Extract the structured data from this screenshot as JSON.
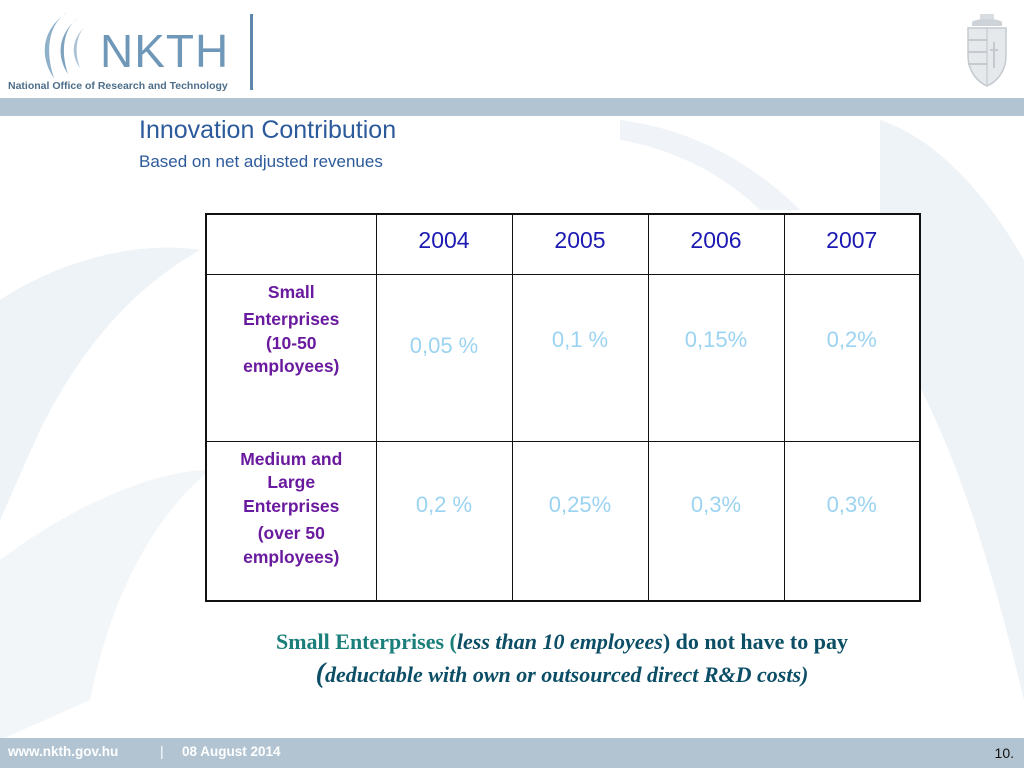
{
  "header": {
    "logo_text": "NKTH",
    "logo_subtitle": "National Office of Research and Technology"
  },
  "slide": {
    "title": "Innovation Contribution",
    "subtitle": "Based on net adjusted revenues"
  },
  "table": {
    "columns": [
      "",
      "2004",
      "2005",
      "2006",
      "2007"
    ],
    "rows": [
      {
        "label_lines": [
          "Small",
          "Enterprises",
          "(10-50",
          "employees)"
        ],
        "values": [
          "0,05 %",
          "0,1 %",
          "0,15%",
          "0,2%"
        ]
      },
      {
        "label_lines": [
          "Medium and",
          "Large",
          "Enterprises",
          "(over 50",
          "employees)"
        ],
        "values": [
          "0,2 %",
          "0,25%",
          "0,3%",
          "0,3%"
        ]
      }
    ]
  },
  "note": {
    "part1": "Small Enterprises (",
    "part2_italic": "less than 10 employees",
    "part3": ") do not have to pay",
    "part4_paren": "(",
    "part5_italic": "deductable with own or outsourced direct R&D costs)"
  },
  "footer": {
    "url": "www.nkth.gov.hu",
    "separator": "|",
    "date": "08 August 2014",
    "page": "10."
  },
  "colors": {
    "header_band": "#b2c4d2",
    "title": "#2c5a9b",
    "year_header": "#1a1ab3",
    "row_label": "#6a1a9e",
    "value": "#9bd3f2",
    "note": "#1a7f7a"
  }
}
